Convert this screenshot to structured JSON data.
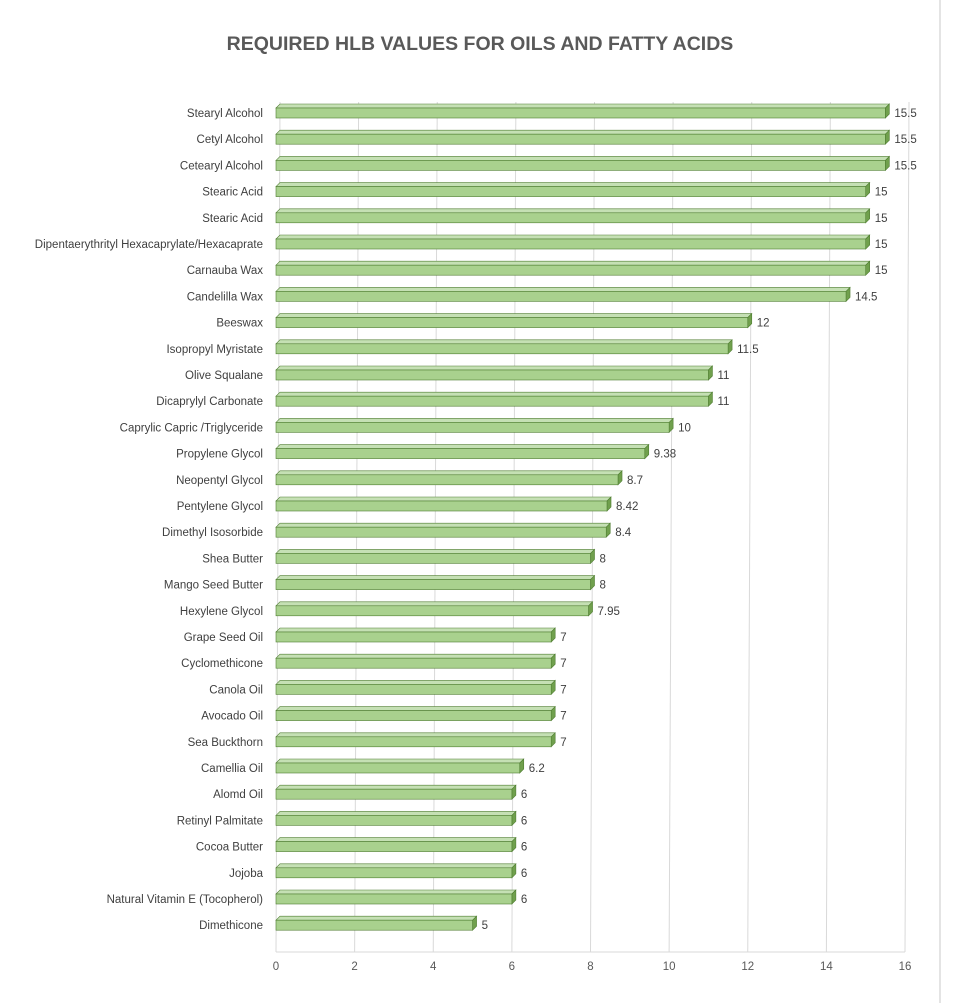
{
  "chart_data": {
    "type": "bar",
    "orientation": "horizontal",
    "title": "REQUIRED HLB VALUES FOR OILS AND FATTY ACIDS",
    "categories": [
      "Stearyl Alcohol",
      "Cetyl Alcohol",
      "Cetearyl Alcohol",
      "Stearic Acid",
      "Stearic Acid",
      "Dipentaerythrityl Hexacaprylate/Hexacaprate",
      "Carnauba Wax",
      "Candelilla Wax",
      "Beeswax",
      "Isopropyl Myristate",
      "Olive Squalane",
      "Dicaprylyl Carbonate",
      "Caprylic Capric /Triglyceride",
      "Propylene Glycol",
      "Neopentyl Glycol",
      "Pentylene Glycol",
      "Dimethyl Isosorbide",
      "Shea Butter",
      "Mango Seed Butter",
      "Hexylene Glycol",
      "Grape Seed Oil",
      "Cyclomethicone",
      "Canola Oil",
      "Avocado Oil",
      "Sea Buckthorn",
      "Camellia Oil",
      "Alomd Oil",
      "Retinyl Palmitate",
      "Cocoa Butter",
      "Jojoba",
      "Natural Vitamin E (Tocopherol)",
      "Dimethicone"
    ],
    "values": [
      15.5,
      15.5,
      15.5,
      15,
      15,
      15,
      15,
      14.5,
      12,
      11.5,
      11,
      11,
      10,
      9.38,
      8.7,
      8.42,
      8.4,
      8,
      8,
      7.95,
      7,
      7,
      7,
      7,
      7,
      6.2,
      6,
      6,
      6,
      6,
      6,
      5
    ],
    "value_labels": [
      "15.5",
      "15.5",
      "15.5",
      "15",
      "15",
      "15",
      "15",
      "14.5",
      "12",
      "11.5",
      "11",
      "11",
      "10",
      "9.38",
      "8.7",
      "8.42",
      "8.4",
      "8",
      "8",
      "7.95",
      "7",
      "7",
      "7",
      "7",
      "7",
      "6.2",
      "6",
      "6",
      "6",
      "6",
      "6",
      "5"
    ],
    "xlim": [
      0,
      16
    ],
    "xticks": [
      0,
      2,
      4,
      6,
      8,
      10,
      12,
      14,
      16
    ],
    "xlabel": "",
    "ylabel": "",
    "grid": "vertical",
    "legend": "none",
    "style": "3d-clustered-bar",
    "colors": {
      "bar_front": "#a9d18e",
      "bar_top": "#c5e0b4",
      "bar_end": "#70a04d",
      "bar_edge": "#507e32",
      "gridline": "#d9d9d9",
      "text": "#404040",
      "title": "#595959"
    }
  }
}
